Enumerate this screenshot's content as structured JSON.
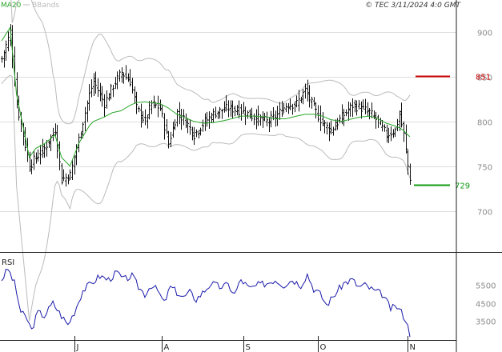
{
  "header": {
    "legend_ma": "MA20",
    "legend_bb": "BBands",
    "copyright": "© TEC 3/11/2024 4:0 GMT"
  },
  "colors": {
    "ma": "#2aa52a",
    "bbands": "#bbbbbb",
    "bars": "#111111",
    "rsi": "#1a1aaa",
    "resistance": "#cc0000",
    "support": "#119911",
    "grid": "#dddddd",
    "frame": "#222222"
  },
  "chart_data": [
    {
      "type": "ohlc",
      "y_ticks": [
        {
          "value": 700,
          "label": "700"
        },
        {
          "value": 750,
          "label": "750"
        },
        {
          "value": 800,
          "label": "800"
        },
        {
          "value": 850,
          "label": "850"
        },
        {
          "value": 900,
          "label": "900"
        }
      ],
      "ylim": [
        655,
        925
      ],
      "x_ticks": [
        {
          "index": 34,
          "label": "J"
        },
        {
          "index": 75,
          "label": "A"
        },
        {
          "index": 113,
          "label": "S"
        },
        {
          "index": 148,
          "label": "O"
        },
        {
          "index": 190,
          "label": "N"
        }
      ],
      "levels": [
        {
          "name": "resistance",
          "value": 851,
          "label": "851"
        },
        {
          "name": "support",
          "value": 729,
          "label": "729"
        }
      ],
      "series": [
        {
          "name": "MA20",
          "kind": "line"
        },
        {
          "name": "BBands",
          "kind": "band"
        }
      ],
      "anchors": [
        [
          0,
          870,
          890
        ],
        [
          4,
          900,
          905
        ],
        [
          7,
          820,
          830
        ],
        [
          13,
          750,
          760
        ],
        [
          16,
          760,
          770
        ],
        [
          20,
          770,
          775
        ],
        [
          25,
          790,
          785
        ],
        [
          28,
          735,
          760
        ],
        [
          32,
          740,
          750
        ],
        [
          36,
          780,
          775
        ],
        [
          41,
          830,
          795
        ],
        [
          43,
          845,
          800
        ],
        [
          48,
          820,
          805
        ],
        [
          52,
          840,
          810
        ],
        [
          56,
          855,
          812
        ],
        [
          60,
          845,
          818
        ],
        [
          63,
          815,
          821
        ],
        [
          67,
          800,
          822
        ],
        [
          70,
          820,
          821
        ],
        [
          74,
          815,
          820
        ],
        [
          78,
          775,
          815
        ],
        [
          82,
          810,
          808
        ],
        [
          86,
          800,
          804
        ],
        [
          90,
          785,
          800
        ],
        [
          95,
          800,
          798
        ],
        [
          100,
          810,
          799
        ],
        [
          106,
          815,
          802
        ],
        [
          112,
          812,
          806
        ],
        [
          118,
          805,
          806
        ],
        [
          124,
          800,
          805
        ],
        [
          128,
          805,
          803
        ],
        [
          133,
          818,
          803
        ],
        [
          138,
          820,
          806
        ],
        [
          142,
          835,
          808
        ],
        [
          146,
          815,
          808
        ],
        [
          150,
          798,
          806
        ],
        [
          154,
          790,
          802
        ],
        [
          159,
          805,
          800
        ],
        [
          164,
          818,
          803
        ],
        [
          168,
          815,
          805
        ],
        [
          172,
          810,
          806
        ],
        [
          176,
          800,
          803
        ],
        [
          180,
          785,
          798
        ],
        [
          184,
          790,
          795
        ],
        [
          186,
          808,
          793
        ],
        [
          188,
          785,
          790
        ],
        [
          190,
          750,
          785
        ],
        [
          191,
          737,
          783
        ]
      ]
    },
    {
      "type": "line",
      "title": "RSI",
      "y_ticks": [
        {
          "value": 55,
          "label": "5500"
        },
        {
          "value": 45,
          "label": "4500"
        },
        {
          "value": 35,
          "label": "3500"
        }
      ],
      "ylim": [
        25,
        72
      ],
      "anchors": [
        [
          0,
          58
        ],
        [
          3,
          64
        ],
        [
          6,
          56
        ],
        [
          9,
          40
        ],
        [
          12,
          36
        ],
        [
          14,
          30
        ],
        [
          17,
          40
        ],
        [
          20,
          38
        ],
        [
          24,
          45
        ],
        [
          28,
          38
        ],
        [
          31,
          33
        ],
        [
          34,
          40
        ],
        [
          38,
          52
        ],
        [
          42,
          56
        ],
        [
          46,
          60
        ],
        [
          50,
          58
        ],
        [
          54,
          62
        ],
        [
          57,
          58
        ],
        [
          61,
          60
        ],
        [
          64,
          54
        ],
        [
          67,
          50
        ],
        [
          70,
          55
        ],
        [
          73,
          52
        ],
        [
          76,
          45
        ],
        [
          79,
          54
        ],
        [
          82,
          51
        ],
        [
          85,
          48
        ],
        [
          88,
          51
        ],
        [
          91,
          47
        ],
        [
          95,
          52
        ],
        [
          98,
          56
        ],
        [
          102,
          54
        ],
        [
          106,
          55
        ],
        [
          109,
          50
        ],
        [
          112,
          58
        ],
        [
          116,
          53
        ],
        [
          120,
          55
        ],
        [
          124,
          56
        ],
        [
          128,
          58
        ],
        [
          132,
          55
        ],
        [
          136,
          58
        ],
        [
          140,
          55
        ],
        [
          143,
          61
        ],
        [
          146,
          53
        ],
        [
          149,
          50
        ],
        [
          152,
          44
        ],
        [
          156,
          50
        ],
        [
          160,
          56
        ],
        [
          164,
          58
        ],
        [
          167,
          54
        ],
        [
          170,
          55
        ],
        [
          174,
          52
        ],
        [
          178,
          50
        ],
        [
          182,
          42
        ],
        [
          185,
          43
        ],
        [
          187,
          40
        ],
        [
          189,
          36
        ],
        [
          191,
          28
        ]
      ]
    }
  ]
}
